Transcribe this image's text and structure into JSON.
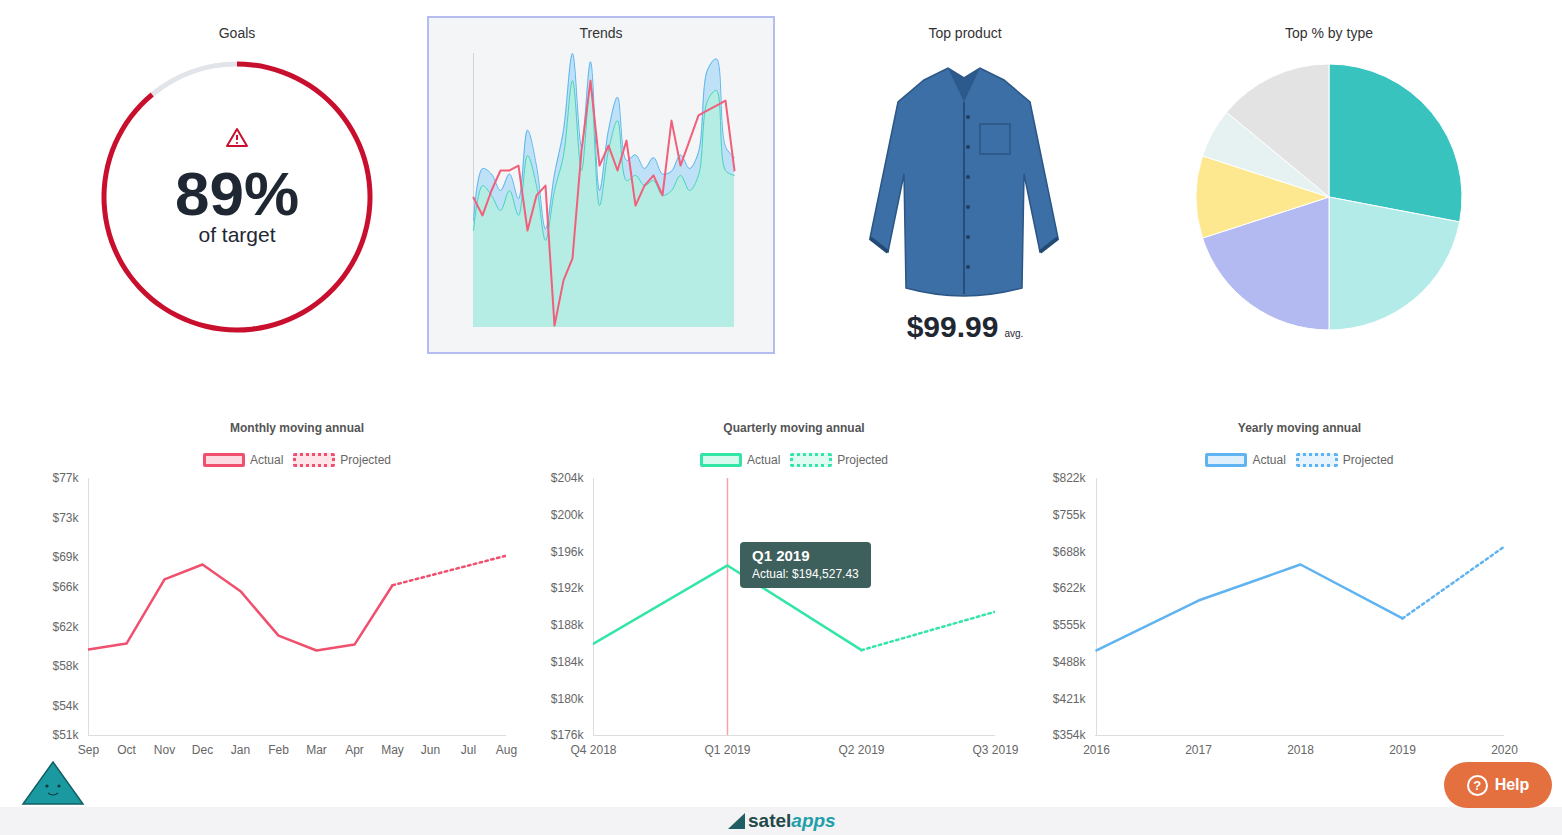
{
  "chart_data": [
    {
      "type": "gauge",
      "title": "Goals",
      "value": 89,
      "value_label": "89%",
      "label": "of target",
      "ylim": [
        0,
        100
      ],
      "color": "#c8102e"
    },
    {
      "type": "area",
      "title": "Trends",
      "categories": [
        null,
        null,
        null,
        null,
        null,
        null,
        null,
        null,
        null,
        null,
        null,
        null,
        null,
        null,
        null,
        null,
        null,
        null,
        null,
        null,
        null,
        null,
        null,
        null,
        null,
        null,
        null,
        null,
        null,
        null
      ],
      "ylim": [
        0,
        100
      ],
      "tick_labels": false,
      "series": [
        {
          "type": "area",
          "color": "#5eb5ee",
          "values": [
            39,
            58,
            56,
            50,
            56,
            47,
            72,
            59,
            36,
            56,
            72,
            100,
            66,
            97,
            50,
            72,
            84,
            61,
            63,
            58,
            62,
            56,
            57,
            63,
            58,
            64,
            94,
            98,
            66,
            62
          ]
        },
        {
          "type": "area",
          "color": "#45d3bd",
          "values": [
            35.4,
            51.8,
            48.2,
            42.7,
            50,
            40.9,
            62.8,
            51.8,
            31.8,
            50,
            62.8,
            90.1,
            57.3,
            88.3,
            44.5,
            64.6,
            75.5,
            53.6,
            55.5,
            51.8,
            53.6,
            48.2,
            50,
            55.5,
            50,
            55.5,
            82.8,
            86.5,
            57.3,
            55.5
          ]
        },
        {
          "type": "line",
          "color": "#f0607a",
          "values": [
            47.4,
            40.9,
            50,
            57.3,
            57.3,
            59.1,
            35.4,
            48.2,
            51.8,
            0.7,
            17.2,
            25.2,
            64.6,
            90.1,
            59.1,
            66.4,
            57.3,
            68.2,
            44.5,
            51.8,
            55.5,
            48.2,
            75.5,
            59.1,
            68.2,
            77.4,
            79.2,
            81,
            82.8,
            57.3
          ]
        }
      ]
    },
    {
      "type": "product",
      "title": "Top product",
      "value_label": "$99.99",
      "note": "avg."
    },
    {
      "type": "pie",
      "title": "Top % by type",
      "categories": [
        null,
        null,
        null,
        null,
        null,
        null
      ],
      "values": [
        28,
        22,
        20,
        10,
        6,
        14
      ],
      "colors": [
        "#38c3bf",
        "#b2ebe8",
        "#b3baf2",
        "#fde88f",
        "#e6f2f2",
        "#e3e3e3"
      ],
      "tick_labels": false
    },
    {
      "type": "line",
      "title": "Monthly moving annual",
      "categories": [
        "Sep",
        "Oct",
        "Nov",
        "Dec",
        "Jan",
        "Feb",
        "Mar",
        "Apr",
        "May",
        "Jun",
        "Jul",
        "Aug"
      ],
      "ylim": [
        51000,
        77000
      ],
      "yticks": [
        {
          "value": 51000,
          "label": "$51k"
        },
        {
          "value": 54000,
          "label": "$54k"
        },
        {
          "value": 58000,
          "label": "$58k"
        },
        {
          "value": 62000,
          "label": "$62k"
        },
        {
          "value": 66000,
          "label": "$66k"
        },
        {
          "value": 69000,
          "label": "$69k"
        },
        {
          "value": 73000,
          "label": "$73k"
        },
        {
          "value": 77000,
          "label": "$77k"
        }
      ],
      "legend": "top",
      "series": [
        {
          "name": "Actual",
          "color": "#f0506e",
          "line_style": "solid",
          "values": [
            59700,
            60300,
            66800,
            68300,
            65600,
            61100,
            59600,
            60200,
            66200,
            null,
            null,
            null
          ]
        },
        {
          "name": "Projected",
          "color": "#f0506e",
          "line_style": "dotted",
          "values": [
            null,
            null,
            null,
            null,
            null,
            null,
            null,
            null,
            66200,
            67200,
            68200,
            69200
          ]
        }
      ]
    },
    {
      "type": "line",
      "title": "Quarterly moving annual",
      "categories": [
        "Q4 2018",
        "Q1 2019",
        "Q2 2019",
        "Q3 2019"
      ],
      "ylim": [
        176000,
        204000
      ],
      "yticks": [
        {
          "value": 176000,
          "label": "$176k"
        },
        {
          "value": 180000,
          "label": "$180k"
        },
        {
          "value": 184000,
          "label": "$184k"
        },
        {
          "value": 188000,
          "label": "$188k"
        },
        {
          "value": 192000,
          "label": "$192k"
        },
        {
          "value": 196000,
          "label": "$196k"
        },
        {
          "value": 200000,
          "label": "$200k"
        },
        {
          "value": 204000,
          "label": "$204k"
        }
      ],
      "legend": "top",
      "annotation": {
        "category": "Q1 2019",
        "series": "Actual",
        "label": "Actual: $194,527.43"
      },
      "series": [
        {
          "name": "Actual",
          "color": "#33e6a6",
          "line_style": "solid",
          "values": [
            186000,
            194527.43,
            185300,
            null
          ]
        },
        {
          "name": "Projected",
          "color": "#33e6a6",
          "line_style": "dotted",
          "values": [
            null,
            null,
            185300,
            189500
          ]
        }
      ]
    },
    {
      "type": "line",
      "title": "Yearly moving annual",
      "categories": [
        "2016",
        "2017",
        "2018",
        "2019",
        "2020"
      ],
      "ylim": [
        354000,
        822000
      ],
      "yticks": [
        {
          "value": 354000,
          "label": "$354k"
        },
        {
          "value": 421000,
          "label": "$421k"
        },
        {
          "value": 488000,
          "label": "$488k"
        },
        {
          "value": 555000,
          "label": "$555k"
        },
        {
          "value": 622000,
          "label": "$622k"
        },
        {
          "value": 688000,
          "label": "$688k"
        },
        {
          "value": 755000,
          "label": "$755k"
        },
        {
          "value": 822000,
          "label": "$822k"
        }
      ],
      "legend": "top",
      "series": [
        {
          "name": "Actual",
          "color": "#5fb3f0",
          "line_style": "solid",
          "values": [
            508800,
            599800,
            665400,
            567100,
            null
          ]
        },
        {
          "name": "Projected",
          "color": "#5fb3f0",
          "line_style": "dotted",
          "values": [
            null,
            null,
            null,
            567100,
            698200
          ]
        }
      ]
    }
  ],
  "footer": {
    "brand": [
      "satel",
      "apps"
    ],
    "help": {
      "icon": "?",
      "label": "Help"
    }
  }
}
